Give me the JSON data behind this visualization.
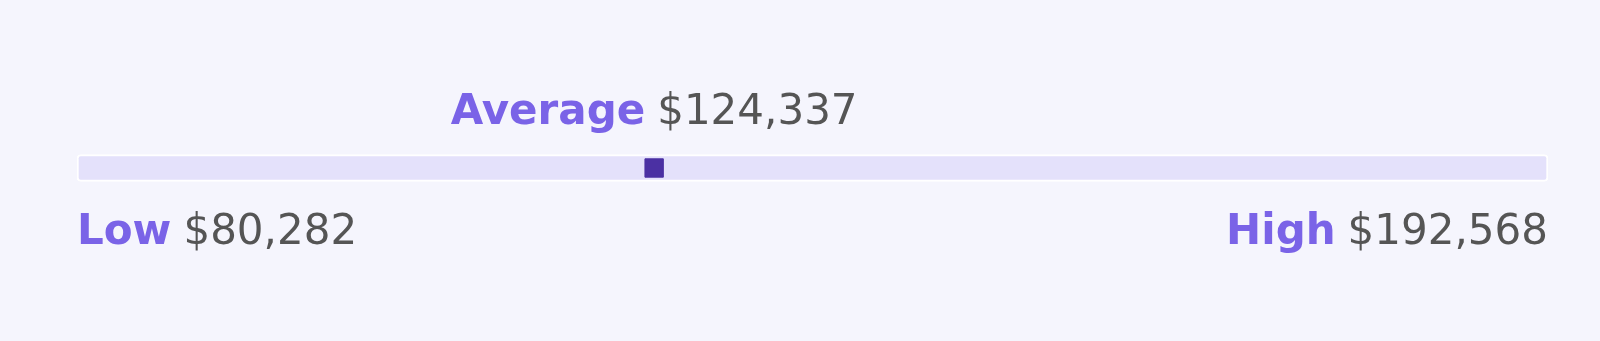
{
  "chart_data": {
    "type": "other",
    "categories": [
      "Low",
      "Average",
      "High"
    ],
    "values": [
      80282,
      124337,
      192568
    ],
    "value_labels": [
      "$80,282",
      "$124,337",
      "$192,568"
    ]
  }
}
